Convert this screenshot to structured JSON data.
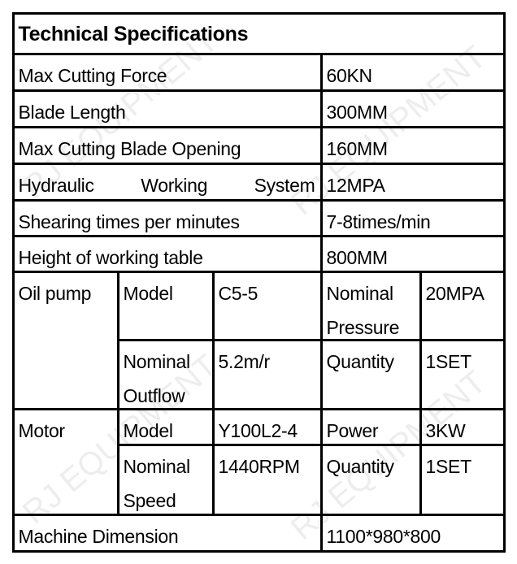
{
  "watermark": "RJ EQUIPMENT",
  "title": "Technical Specifications",
  "rows": [
    {
      "label": "Max Cutting Force",
      "value": "60KN"
    },
    {
      "label": "Blade Length",
      "value": "300MM"
    },
    {
      "label": "Max Cutting Blade Opening",
      "value": "160MM"
    },
    {
      "label_words": [
        "Hydraulic",
        "Working",
        "System"
      ],
      "value": "12MPA"
    },
    {
      "label": "Shearing times per minutes",
      "value": "7-8times/min"
    },
    {
      "label": "Height of working table",
      "value": "800MM"
    }
  ],
  "oil_pump": {
    "label": "Oil pump",
    "model_label": "Model",
    "model": "C5-5",
    "pressure_label": "Nominal Pressure",
    "pressure": "20MPA",
    "outflow_label": "Nominal Outflow",
    "outflow": "5.2m/r",
    "quantity_label": "Quantity",
    "quantity": "1SET"
  },
  "motor": {
    "label": "Motor",
    "model_label": "Model",
    "model": "Y100L2-4",
    "power_label": "Power",
    "power": "3KW",
    "speed_label": "Nominal Speed",
    "speed": "1440RPM",
    "quantity_label": "Quantity",
    "quantity": "1SET"
  },
  "dimension": {
    "label": "Machine Dimension",
    "value": "1100*980*800"
  }
}
